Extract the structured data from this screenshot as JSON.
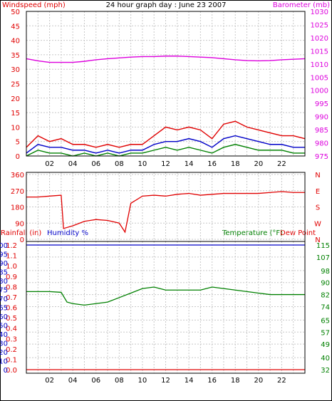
{
  "title": "24 hour graph day : June 23 2007",
  "colors": {
    "wind": "#e00000",
    "gust_avg": "#0000c8",
    "wind_low": "#008000",
    "baro": "#dd00dd",
    "dir": "#e00000",
    "temp": "#008000",
    "rain": "#e00000",
    "humidity": "#0000c8",
    "grid": "#c8c8c8",
    "axis": "#000000"
  },
  "chart_data": [
    {
      "type": "line",
      "panel": "wind-baro",
      "ylabel_left": "Windspeed (mph)",
      "ylabel_right": "Barometer (mb)",
      "ylim_left": [
        0,
        50
      ],
      "ylim_right": [
        975,
        1030
      ],
      "yticks_left": [
        "0",
        "5",
        "10",
        "15",
        "20",
        "25",
        "30",
        "35",
        "40",
        "45",
        "50"
      ],
      "yticks_right": [
        "975",
        "980",
        "985",
        "990",
        "995",
        "1000",
        "1005",
        "1010",
        "1015",
        "1020",
        "1025",
        "1030"
      ],
      "xticks": [
        "02",
        "04",
        "06",
        "08",
        "10",
        "12",
        "14",
        "16",
        "18",
        "20",
        "22"
      ],
      "x": [
        0,
        1,
        2,
        3,
        4,
        5,
        6,
        7,
        8,
        9,
        10,
        11,
        12,
        13,
        14,
        15,
        16,
        17,
        18,
        19,
        20,
        21,
        22,
        23,
        24
      ],
      "series": [
        {
          "name": "Barometer",
          "axis": "right",
          "values": [
            1012,
            1011.2,
            1010.6,
            1010.6,
            1010.6,
            1011,
            1011.6,
            1012,
            1012.3,
            1012.6,
            1012.8,
            1012.8,
            1013,
            1013,
            1012.8,
            1012.6,
            1012.4,
            1012,
            1011.6,
            1011.3,
            1011.2,
            1011.3,
            1011.6,
            1011.8,
            1012
          ]
        },
        {
          "name": "Wind gust",
          "axis": "left",
          "values": [
            3,
            7,
            5,
            6,
            4,
            4,
            3,
            4,
            3,
            4,
            4,
            7,
            10,
            9,
            10,
            9,
            6,
            11,
            12,
            10,
            9,
            8,
            7,
            7,
            6
          ]
        },
        {
          "name": "Wind average",
          "axis": "left",
          "values": [
            1,
            4,
            3,
            3,
            2,
            2,
            1,
            2,
            1,
            2,
            2,
            4,
            5,
            5,
            6,
            5,
            3,
            6,
            7,
            6,
            5,
            4,
            4,
            3,
            3
          ]
        },
        {
          "name": "Wind low",
          "axis": "left",
          "values": [
            0,
            2,
            1,
            1,
            0,
            1,
            0,
            1,
            0,
            1,
            1,
            2,
            3,
            2,
            3,
            2,
            1,
            3,
            4,
            3,
            2,
            2,
            2,
            1,
            1
          ]
        }
      ]
    },
    {
      "type": "line",
      "panel": "wind-direction",
      "ylim_left": [
        0,
        360
      ],
      "yticks_left": [
        "0",
        "90",
        "180",
        "270",
        "360"
      ],
      "compass_right": [
        "N",
        "W",
        "S",
        "E",
        "N"
      ],
      "x": [
        0,
        1,
        2,
        3,
        3.2,
        4,
        5,
        6,
        7,
        8,
        8.5,
        9,
        10,
        11,
        12,
        13,
        14,
        15,
        16,
        17,
        18,
        19,
        20,
        21,
        22,
        23,
        24
      ],
      "series": [
        {
          "name": "Wind direction",
          "values": [
            235,
            235,
            240,
            245,
            60,
            75,
            100,
            110,
            105,
            90,
            40,
            200,
            240,
            245,
            240,
            250,
            255,
            245,
            250,
            255,
            255,
            255,
            255,
            260,
            265,
            260,
            260
          ]
        }
      ]
    },
    {
      "type": "line",
      "panel": "rain-humidity-temp",
      "ylabel_rain": "Rainfall (in)",
      "ylabel_humidity": "Humidity %",
      "ylabel_temp": "Temperature (°F)",
      "ylabel_dew": "Dew Point",
      "ylim_temp": [
        32,
        115
      ],
      "yticks_rain": [
        "0.0",
        "0.1",
        "0.2",
        "0.3",
        "0.4",
        "0.5",
        "0.6",
        "0.7",
        "0.8",
        "0.9",
        "1.0",
        "1.1",
        "1.2"
      ],
      "yticks_humidity": [
        "0",
        "10",
        "20",
        "30",
        "40",
        "50",
        "60",
        "65",
        "70",
        "75",
        "80",
        "85",
        "90",
        "95",
        "100"
      ],
      "yticks_temp": [
        "32",
        "40",
        "49",
        "57",
        "65",
        "74",
        "82",
        "90",
        "98",
        "107",
        "115"
      ],
      "xticks": [
        "02",
        "04",
        "06",
        "08",
        "10",
        "12",
        "14",
        "16",
        "18",
        "20",
        "22"
      ],
      "x": [
        0,
        1,
        2,
        3,
        3.5,
        4,
        5,
        6,
        7,
        8,
        9,
        10,
        11,
        12,
        13,
        14,
        15,
        16,
        17,
        18,
        19,
        20,
        21,
        22,
        23,
        24
      ],
      "series": [
        {
          "name": "Temperature",
          "values": [
            84,
            84,
            84,
            83.5,
            77,
            76,
            75,
            76,
            77,
            80,
            83,
            86,
            87,
            85,
            85,
            85,
            85,
            87,
            86,
            85,
            84,
            83,
            82,
            82,
            82,
            82
          ]
        },
        {
          "name": "Rainfall",
          "values": [
            0,
            0,
            0,
            0,
            0,
            0,
            0,
            0,
            0,
            0,
            0,
            0,
            0,
            0,
            0,
            0,
            0,
            0,
            0,
            0,
            0,
            0,
            0,
            0,
            0,
            0
          ]
        },
        {
          "name": "Humidity",
          "values": [
            100,
            100,
            100,
            100,
            100,
            100,
            100,
            100,
            100,
            100,
            100,
            100,
            100,
            100,
            100,
            100,
            100,
            100,
            100,
            100,
            100,
            100,
            100,
            100,
            100,
            100
          ]
        }
      ]
    }
  ]
}
